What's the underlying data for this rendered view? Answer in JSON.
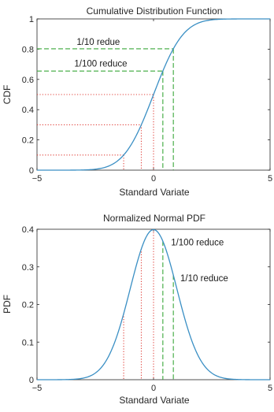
{
  "chart_data": [
    {
      "type": "line",
      "title": "Cumulative Distribution Function",
      "xlabel": "Standard Variate",
      "ylabel": "CDF",
      "xlim": [
        -5,
        5
      ],
      "ylim": [
        0,
        1
      ],
      "xticks": [
        "-5",
        "0",
        "5"
      ],
      "yticks": [
        "0",
        "0.2",
        "0.4",
        "0.6",
        "0.8",
        "1"
      ],
      "grid": false,
      "series": [
        {
          "function": "normal_cdf",
          "color": "#3a8fc4",
          "x": [
            -5,
            -4,
            -3,
            -2.5,
            -2,
            -1.5,
            -1.2816,
            -1,
            -0.5244,
            0,
            0.5244,
            0.8416,
            1,
            1.5,
            2,
            2.5,
            3,
            4,
            5
          ],
          "y": [
            3e-07,
            3.17e-05,
            0.00135,
            0.00621,
            0.02275,
            0.0668,
            0.1,
            0.1587,
            0.3,
            0.5,
            0.7,
            0.8,
            0.8413,
            0.9332,
            0.97725,
            0.99379,
            0.99865,
            0.99997,
            1.0
          ]
        }
      ],
      "red_markers": {
        "color": "#e0403a",
        "x": [
          -1.2816,
          -0.5244,
          0
        ],
        "y": [
          0.1,
          0.3,
          0.5
        ]
      },
      "green_markers": {
        "color": "#3aa83a",
        "x": [
          0.4,
          0.85
        ],
        "y": [
          0.6554,
          0.8023
        ]
      },
      "annotations": [
        {
          "text": "1/10 redue",
          "x": -3.3,
          "y": 0.85
        },
        {
          "text": "1/100 reduce",
          "x": -3.4,
          "y": 0.705
        }
      ]
    },
    {
      "type": "line",
      "title": "Normalized Normal PDF",
      "xlabel": "Standard Variate",
      "ylabel": "PDF",
      "xlim": [
        -5,
        5
      ],
      "ylim": [
        0,
        0.4
      ],
      "xticks": [
        "-5",
        "0",
        "5"
      ],
      "yticks": [
        "0",
        "0.1",
        "0.2",
        "0.3",
        "0.4"
      ],
      "grid": false,
      "series": [
        {
          "function": "normal_pdf",
          "color": "#3a8fc4",
          "x": [
            -5,
            -4,
            -3,
            -2.5,
            -2,
            -1.5,
            -1.2816,
            -1,
            -0.5244,
            0,
            0.5244,
            1,
            1.5,
            2,
            2.5,
            3,
            4,
            5
          ],
          "y": [
            1.5e-06,
            0.000134,
            0.00443,
            0.01753,
            0.05399,
            0.12952,
            0.1755,
            0.24197,
            0.34769,
            0.39894,
            0.34769,
            0.24197,
            0.12952,
            0.05399,
            0.01753,
            0.00443,
            0.000134,
            1.5e-06
          ]
        }
      ],
      "red_markers": {
        "color": "#e0403a",
        "x": [
          -1.2816,
          -0.5244,
          0
        ]
      },
      "green_markers": {
        "color": "#3aa83a",
        "x": [
          0.4,
          0.85
        ]
      },
      "annotations": [
        {
          "text": "1/100 reduce",
          "x": 0.75,
          "y": 0.365
        },
        {
          "text": "1/10 reduce",
          "x": 1.15,
          "y": 0.27
        }
      ]
    }
  ]
}
